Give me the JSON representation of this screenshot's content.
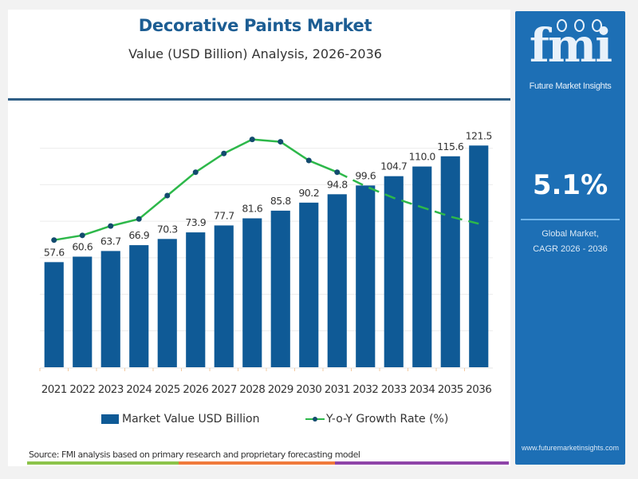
{
  "header": {
    "title": "Decorative Paints Market",
    "subtitle": "Value (USD Billion) Analysis, 2026-2036"
  },
  "sidebar": {
    "logo_text": "fmi",
    "logo_subtitle": "Future Market Insights",
    "cagr_value": "5.1%",
    "cagr_label_line1": "Global Market,",
    "cagr_label_line2": "CAGR 2026 - 2036",
    "website": "www.futuremarketinsights.com",
    "background_color": "#1d6fb5"
  },
  "source": "Source: FMI analysis based on primary research and proprietary forecasting model",
  "footer_colors": [
    "#8cc34a",
    "#f07a3c",
    "#8e44a8"
  ],
  "chart_data": {
    "type": "bar",
    "title": "Decorative Paints Market",
    "subtitle": "Value (USD Billion) Analysis, 2026-2036",
    "categories": [
      "2021",
      "2022",
      "2023",
      "2024",
      "2025",
      "2026",
      "2027",
      "2028",
      "2029",
      "2030",
      "2031",
      "2032",
      "2033",
      "2034",
      "2035",
      "2036"
    ],
    "series": [
      {
        "name": "Market Value USD Billion",
        "type": "bar",
        "color": "#0f5a96",
        "values": [
          57.6,
          60.6,
          63.7,
          66.9,
          70.3,
          73.9,
          77.7,
          81.6,
          85.8,
          90.2,
          94.8,
          99.6,
          104.7,
          110.0,
          115.6,
          121.5
        ],
        "labels": [
          "57.6",
          "60.6",
          "63.7",
          "66.9",
          "70.3",
          "73.9",
          "77.7",
          "81.6",
          "85.8",
          "90.2",
          "94.8",
          "99.6",
          "104.7",
          "110.0",
          "115.6",
          "121.5"
        ]
      },
      {
        "name": "Y-o-Y Growth Rate (%)",
        "type": "line",
        "color": "#2db84a",
        "marker_color": "#134b6e",
        "note": "no secondary axis shown; relative values estimated from line shape",
        "values": [
          5.0,
          5.2,
          5.6,
          5.9,
          6.9,
          7.9,
          8.7,
          9.3,
          9.2,
          8.4,
          7.9,
          7.3,
          6.8,
          6.4,
          6.0,
          5.7
        ],
        "solid_until": "2031",
        "dashed_after": "2031",
        "marker_until": "2031"
      }
    ],
    "xlabel": "",
    "ylabel": "",
    "ylim": [
      0,
      140
    ],
    "grid": true,
    "legend": "bottom-center"
  }
}
